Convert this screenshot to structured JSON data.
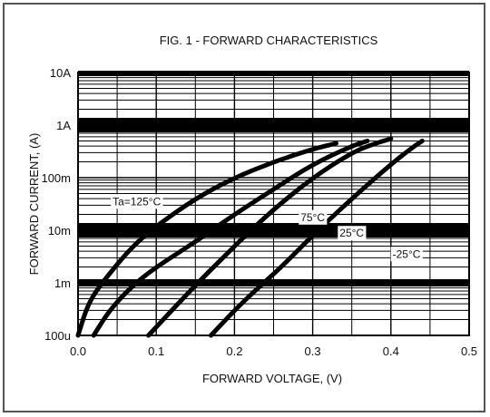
{
  "chart_data": {
    "type": "line",
    "title": "FIG. 1 -  FORWARD CHARACTERISTICS",
    "xlabel": "FORWARD  VOLTAGE, (V)",
    "ylabel": "FORWARD  CURRENT, (A)",
    "xlim": [
      0.0,
      0.5
    ],
    "ylim": [
      0.0001,
      10
    ],
    "yscale": "log",
    "grid": true,
    "x_ticks": [
      {
        "value": 0.0,
        "label": "0.0"
      },
      {
        "value": 0.1,
        "label": "0.1"
      },
      {
        "value": 0.2,
        "label": "0.2"
      },
      {
        "value": 0.3,
        "label": "0.3"
      },
      {
        "value": 0.4,
        "label": "0.4"
      },
      {
        "value": 0.5,
        "label": "0.5"
      }
    ],
    "y_ticks": [
      {
        "value": 0.0001,
        "label": "100u"
      },
      {
        "value": 0.001,
        "label": "1m"
      },
      {
        "value": 0.01,
        "label": "10m"
      },
      {
        "value": 0.1,
        "label": "100m"
      },
      {
        "value": 1,
        "label": "1A"
      },
      {
        "value": 10,
        "label": "10A"
      }
    ],
    "series": [
      {
        "name": "Ta=125°C",
        "x": [
          0.0,
          0.01,
          0.02,
          0.04,
          0.07,
          0.1,
          0.15,
          0.2,
          0.25,
          0.3,
          0.33
        ],
        "y": [
          0.0001,
          0.0003,
          0.0006,
          0.0015,
          0.005,
          0.012,
          0.04,
          0.1,
          0.2,
          0.35,
          0.45
        ]
      },
      {
        "name": "75°C",
        "x": [
          0.02,
          0.04,
          0.07,
          0.1,
          0.15,
          0.2,
          0.25,
          0.3,
          0.35,
          0.37
        ],
        "y": [
          0.0001,
          0.0003,
          0.0009,
          0.002,
          0.006,
          0.02,
          0.06,
          0.18,
          0.4,
          0.5
        ]
      },
      {
        "name": "25°C",
        "x": [
          0.09,
          0.12,
          0.15,
          0.18,
          0.21,
          0.25,
          0.3,
          0.35,
          0.38,
          0.4
        ],
        "y": [
          0.0001,
          0.0003,
          0.0009,
          0.0025,
          0.007,
          0.025,
          0.1,
          0.3,
          0.45,
          0.55
        ]
      },
      {
        "name": "-25°C",
        "x": [
          0.17,
          0.2,
          0.23,
          0.26,
          0.3,
          0.35,
          0.4,
          0.43,
          0.44
        ],
        "y": [
          0.0001,
          0.0003,
          0.0008,
          0.002,
          0.008,
          0.04,
          0.18,
          0.4,
          0.5
        ]
      }
    ],
    "annotations": [
      {
        "text": "Ta=125°C",
        "series": "Ta=125°C",
        "x": 0.075,
        "y": 0.03
      },
      {
        "text": "75°C",
        "series": "75°C",
        "x": 0.3,
        "y": 0.015
      },
      {
        "text": "25°C",
        "series": "25°C",
        "x": 0.35,
        "y": 0.0075
      },
      {
        "text": "-25°C",
        "series": "-25°C",
        "x": 0.42,
        "y": 0.003
      }
    ],
    "line_color": "#000000",
    "grid_color": "#000000",
    "band_color": "#000000"
  }
}
